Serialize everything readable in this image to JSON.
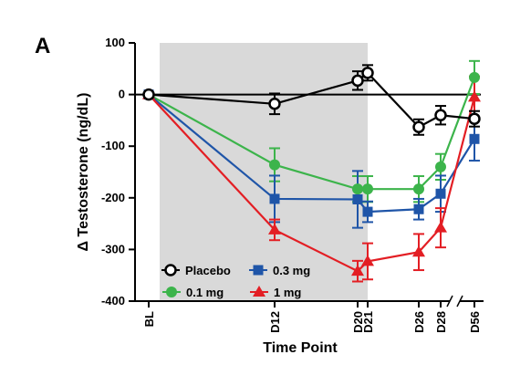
{
  "chart_data": {
    "type": "line",
    "panel_label": "A",
    "xlabel": "Time Point",
    "ylabel": "Δ Testosterone (ng/dL)",
    "ylim": [
      -400,
      100
    ],
    "yticks": [
      100,
      0,
      -100,
      -200,
      -300,
      -400
    ],
    "categories": [
      "BL",
      "D12",
      "D20",
      "D21",
      "D26",
      "D28",
      "D56"
    ],
    "x_ticks_shown": [
      "BL",
      "D12",
      "D20",
      "D21",
      "D26",
      "D28",
      "D56"
    ],
    "x_axis_break_before": "D56",
    "shaded_region": {
      "from": "BL",
      "to": "D21",
      "color": "#d9d9d9"
    },
    "zero_line": true,
    "legend_placement": "bottom-left",
    "series": [
      {
        "name": "Placebo",
        "marker": "open-circle",
        "color": "#000000",
        "points": [
          {
            "x": "BL",
            "y": 0,
            "err": 0
          },
          {
            "x": "D12",
            "y": -18,
            "err": 20
          },
          {
            "x": "D20",
            "y": 27,
            "err": 18
          },
          {
            "x": "D21",
            "y": 42,
            "err": 15
          },
          {
            "x": "D26",
            "y": -63,
            "err": 15
          },
          {
            "x": "D28",
            "y": -40,
            "err": 18
          },
          {
            "x": "D56",
            "y": -47,
            "err": 15
          }
        ]
      },
      {
        "name": "0.1 mg",
        "marker": "filled-circle",
        "color": "#3cb44b",
        "points": [
          {
            "x": "BL",
            "y": 0,
            "err": 0
          },
          {
            "x": "D12",
            "y": -136,
            "err": 32
          },
          {
            "x": "D20",
            "y": -183,
            "err": 25
          },
          {
            "x": "D21",
            "y": -183,
            "err": 25
          },
          {
            "x": "D26",
            "y": -183,
            "err": 25
          },
          {
            "x": "D28",
            "y": -140,
            "err": 25
          },
          {
            "x": "D56",
            "y": 33,
            "err": 32
          }
        ]
      },
      {
        "name": "0.3 mg",
        "marker": "filled-square",
        "color": "#1f55a8",
        "points": [
          {
            "x": "BL",
            "y": 0,
            "err": 0
          },
          {
            "x": "D12",
            "y": -202,
            "err": 45
          },
          {
            "x": "D20",
            "y": -203,
            "err": 55
          },
          {
            "x": "D21",
            "y": -227,
            "err": 20
          },
          {
            "x": "D26",
            "y": -222,
            "err": 20
          },
          {
            "x": "D28",
            "y": -192,
            "err": 35
          },
          {
            "x": "D56",
            "y": -86,
            "err": 42
          }
        ]
      },
      {
        "name": "1 mg",
        "marker": "filled-triangle",
        "color": "#e31e24",
        "points": [
          {
            "x": "BL",
            "y": 0,
            "err": 0
          },
          {
            "x": "D12",
            "y": -262,
            "err": 20
          },
          {
            "x": "D20",
            "y": -342,
            "err": 20
          },
          {
            "x": "D21",
            "y": -323,
            "err": 35
          },
          {
            "x": "D26",
            "y": -305,
            "err": 35
          },
          {
            "x": "D28",
            "y": -258,
            "err": 38
          },
          {
            "x": "D56",
            "y": -5,
            "err": 40
          }
        ]
      }
    ]
  }
}
